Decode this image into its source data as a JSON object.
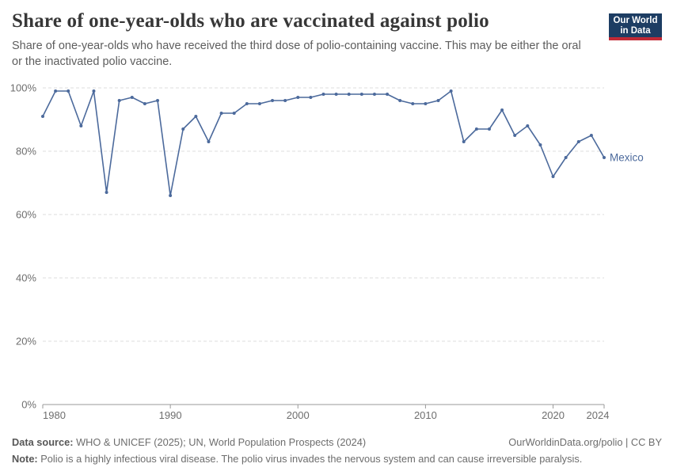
{
  "header": {
    "title": "Share of one-year-olds who are vaccinated against polio",
    "subtitle": "Share of one-year-olds who have received the third dose of polio-containing vaccine. This may be either the oral or the inactivated polio vaccine.",
    "logo": {
      "line1": "Our World",
      "line2": "in Data",
      "bg_color": "#1d3d63",
      "stripe_color": "#c12a36"
    }
  },
  "chart_data": {
    "type": "line",
    "title": "Share of one-year-olds who are vaccinated against polio",
    "entity_label": "Mexico",
    "x": [
      1980,
      1981,
      1982,
      1983,
      1984,
      1985,
      1986,
      1987,
      1988,
      1989,
      1990,
      1991,
      1992,
      1993,
      1994,
      1995,
      1996,
      1997,
      1998,
      1999,
      2000,
      2001,
      2002,
      2003,
      2004,
      2005,
      2006,
      2007,
      2008,
      2009,
      2010,
      2011,
      2012,
      2013,
      2014,
      2015,
      2016,
      2017,
      2018,
      2019,
      2020,
      2021,
      2022,
      2023,
      2024
    ],
    "series": [
      {
        "name": "Mexico",
        "color": "#4c6a9c",
        "values": [
          91,
          99,
          99,
          88,
          99,
          67,
          96,
          97,
          95,
          96,
          66,
          87,
          91,
          83,
          92,
          92,
          95,
          95,
          96,
          96,
          97,
          97,
          98,
          98,
          98,
          98,
          98,
          98,
          96,
          95,
          95,
          96,
          99,
          83,
          87,
          87,
          93,
          85,
          88,
          82,
          72,
          78,
          83,
          85,
          78
        ]
      }
    ],
    "xlim": [
      1980,
      2024
    ],
    "ylim": [
      0,
      100
    ],
    "x_ticks": [
      1980,
      1990,
      2000,
      2010,
      2020,
      2024
    ],
    "x_tick_labels": [
      "1980",
      "1990",
      "2000",
      "2010",
      "2020",
      "2024"
    ],
    "y_ticks": [
      0,
      20,
      40,
      60,
      80,
      100
    ],
    "y_tick_labels": [
      "0%",
      "20%",
      "40%",
      "60%",
      "80%",
      "100%"
    ],
    "grid": "horizontal dashed",
    "legend_position": "end-of-line label",
    "colors": {
      "line": "#4c6a9c",
      "grid": "#dcdcdc",
      "axis": "#9a9a9a",
      "tick_text": "#6e6e6e"
    }
  },
  "footer": {
    "source_label": "Data source:",
    "source_text": " WHO & UNICEF (2025); UN, World Population Prospects (2024)",
    "rights": "OurWorldinData.org/polio | CC BY",
    "note_label": "Note:",
    "note_text": " Polio is a highly infectious viral disease. The polio virus invades the nervous system and can cause irreversible paralysis."
  }
}
